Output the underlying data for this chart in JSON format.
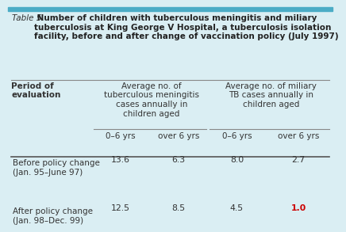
{
  "title_prefix": "Table 5.",
  "title_bold": " Number of children with tuberculous meningitis and miliary\ntuberculosis at King George V Hospital, a tuberculosis isolation\nfacility, before and after change of vaccination policy (July 1997)",
  "bg_color": "#daeef3",
  "header_bg": "#daeef3",
  "top_bar_color": "#4bacc6",
  "col_header1": "Average no. of\ntuberculous meningitis\ncases annually in\nchildren aged",
  "col_header2": "Average no. of miliary\nTB cases annually in\nchildren aged",
  "sub_headers": [
    "0–6 yrs",
    "over 6 yrs",
    "0–6 yrs",
    "over 6 yrs"
  ],
  "row_header": "Period of\nevaluation",
  "rows": [
    {
      "label": "Before policy change\n(Jan. 95–June 97)",
      "values": [
        "13.6",
        "6.3",
        "8.0",
        "2.7"
      ],
      "bold_values": [
        false,
        false,
        false,
        false
      ]
    },
    {
      "label": "After policy change\n(Jan. 98–Dec. 99)",
      "values": [
        "12.5",
        "8.5",
        "4.5",
        "1.0"
      ],
      "bold_values": [
        false,
        false,
        false,
        true
      ]
    }
  ],
  "font_size_title": 7.5,
  "font_size_header": 7.5,
  "font_size_data": 7.8
}
